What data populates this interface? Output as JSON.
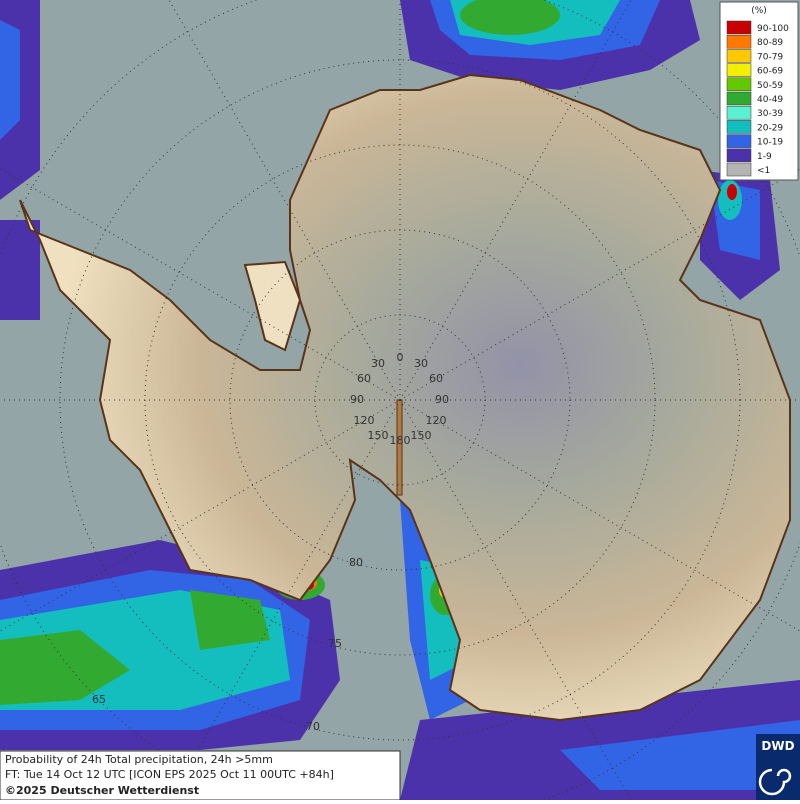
{
  "legend": {
    "unit": "(%)",
    "items": [
      {
        "label": "90-100",
        "color": "#c80000"
      },
      {
        "label": "80-89",
        "color": "#ff7800"
      },
      {
        "label": "70-79",
        "color": "#ffc800"
      },
      {
        "label": "60-69",
        "color": "#f0f000"
      },
      {
        "label": "50-59",
        "color": "#64c800"
      },
      {
        "label": "40-49",
        "color": "#32aa32"
      },
      {
        "label": "30-39",
        "color": "#5af0d2"
      },
      {
        "label": "20-29",
        "color": "#14bebe"
      },
      {
        "label": "10-19",
        "color": "#3264e6"
      },
      {
        "label": "1-9",
        "color": "#4b32aa"
      },
      {
        "label": "<1",
        "color": "#b4b4b4"
      }
    ]
  },
  "grid_labels": {
    "meridian_top": "0",
    "meridians_left": [
      "30",
      "60",
      "90",
      "120",
      "150"
    ],
    "meridians_right": [
      "30",
      "60",
      "90",
      "120",
      "150"
    ],
    "meridian_bottom": "180",
    "parallels": [
      "80",
      "75",
      "70",
      "65"
    ]
  },
  "footer": {
    "lines": [
      "Probability of 24h Total precipitation, 24h >5mm",
      "FT: Tue 14 Oct 12 UTC [ICON EPS 2025 Oct 11 00UTC +84h]",
      "©2025 Deutscher Wetterdienst"
    ]
  },
  "logo": "DWD"
}
